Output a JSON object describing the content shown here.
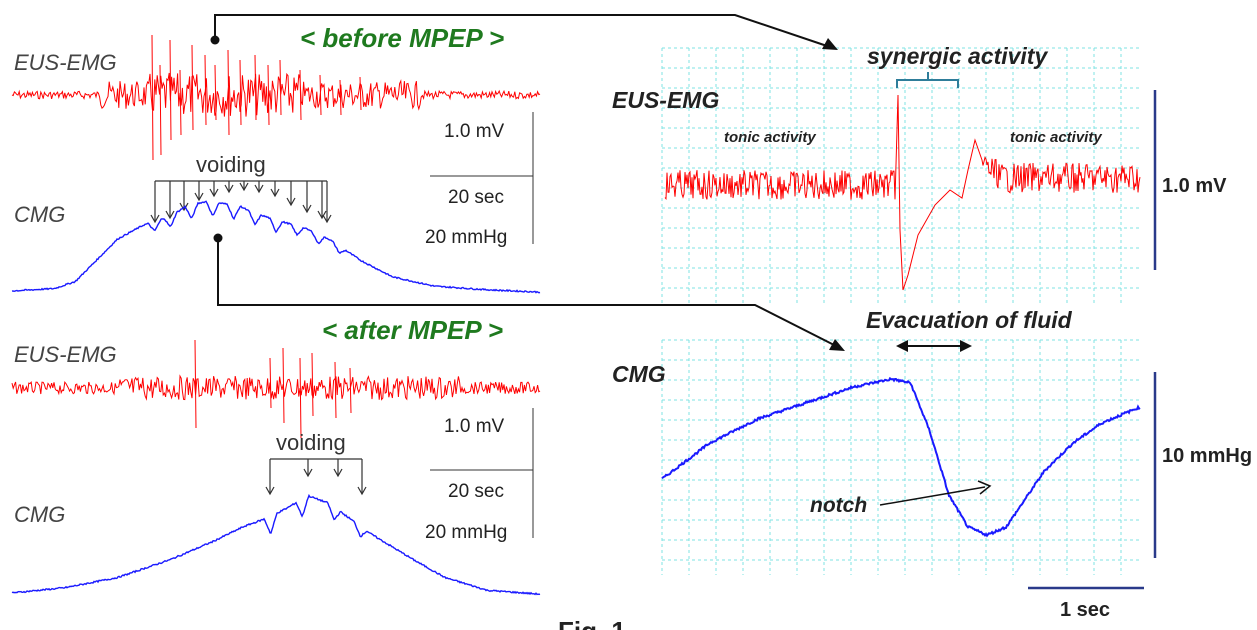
{
  "colors": {
    "emg": "#ff0000",
    "cmg": "#1a1aff",
    "grid": "#7fe3e3",
    "scale": "#2a3a8a",
    "title_green": "#1f7a1f",
    "arrow": "#111111"
  },
  "panel_before": {
    "title": "< before MPEP >",
    "emg_label": "EUS-EMG",
    "cmg_label": "CMG",
    "voiding_label": "voiding",
    "scale_mv": "1.0 mV",
    "scale_sec": "20 sec",
    "scale_mmhg": "20 mmHg"
  },
  "panel_after": {
    "title": "< after MPEP >",
    "emg_label": "EUS-EMG",
    "cmg_label": "CMG",
    "voiding_label": "voiding",
    "scale_mv": "1.0 mV",
    "scale_sec": "20 sec",
    "scale_mmhg": "20 mmHg"
  },
  "zoom_panel": {
    "emg_label": "EUS-EMG",
    "cmg_label": "CMG",
    "synergic_label": "synergic activity",
    "tonic_left": "tonic activity",
    "tonic_right": "tonic activity",
    "evacuation_label": "Evacuation of fluid",
    "notch_label": "notch",
    "scale_mv": "1.0 mV",
    "scale_mmhg": "10 mmHg",
    "scale_sec": "1 sec"
  },
  "caption": "Fig. 1",
  "chart_data": [
    {
      "type": "line",
      "name": "before MPEP CMG",
      "x_units": "relative time",
      "x": [
        0,
        8,
        12,
        16,
        20,
        25,
        28,
        31,
        33,
        35,
        37,
        40,
        43,
        46,
        50,
        55,
        60,
        66,
        72,
        80,
        90,
        100
      ],
      "y": [
        0.06,
        0.08,
        0.14,
        0.32,
        0.5,
        0.62,
        0.66,
        0.72,
        0.78,
        0.8,
        0.82,
        0.8,
        0.78,
        0.72,
        0.66,
        0.6,
        0.5,
        0.32,
        0.18,
        0.1,
        0.07,
        0.05
      ]
    },
    {
      "type": "line",
      "name": "after MPEP CMG",
      "x_units": "relative time",
      "x": [
        0,
        10,
        20,
        30,
        38,
        44,
        48,
        52,
        56,
        60,
        64,
        68,
        72,
        76,
        82,
        90,
        100
      ],
      "y": [
        0.04,
        0.08,
        0.16,
        0.3,
        0.44,
        0.56,
        0.62,
        0.7,
        0.8,
        0.74,
        0.62,
        0.5,
        0.4,
        0.3,
        0.16,
        0.06,
        0.03
      ]
    },
    {
      "type": "line",
      "name": "zoom CMG",
      "x_units": "relative time",
      "x": [
        0,
        10,
        20,
        30,
        40,
        48,
        52,
        56,
        60,
        64,
        68,
        72,
        76,
        80,
        86,
        92,
        100
      ],
      "y": [
        0.38,
        0.56,
        0.68,
        0.76,
        0.84,
        0.88,
        0.86,
        0.62,
        0.3,
        0.14,
        0.1,
        0.14,
        0.28,
        0.42,
        0.56,
        0.66,
        0.74
      ]
    }
  ]
}
